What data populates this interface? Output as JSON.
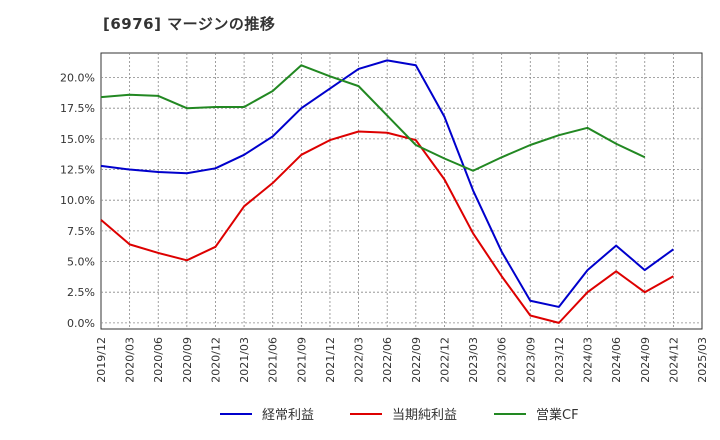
{
  "chart_data": {
    "type": "line",
    "title": "[6976]  マージンの推移",
    "x": [
      "2019/12",
      "2020/03",
      "2020/06",
      "2020/09",
      "2020/12",
      "2021/03",
      "2021/06",
      "2021/09",
      "2021/12",
      "2022/03",
      "2022/06",
      "2022/09",
      "2022/12",
      "2023/03",
      "2023/06",
      "2023/09",
      "2023/12",
      "2024/03",
      "2024/06",
      "2024/09",
      "2024/12",
      "2025/03"
    ],
    "ylim": [
      -0.5,
      22.0
    ],
    "yticks": [
      0.0,
      2.5,
      5.0,
      7.5,
      10.0,
      12.5,
      15.0,
      17.5,
      20.0
    ],
    "ytick_labels": [
      "0.0%",
      "2.5%",
      "5.0%",
      "7.5%",
      "10.0%",
      "12.5%",
      "15.0%",
      "17.5%",
      "20.0%"
    ],
    "grid": true,
    "legend_position": "bottom",
    "series": [
      {
        "name": "経常利益",
        "color": "#0000cc",
        "values": [
          12.8,
          12.5,
          12.3,
          12.2,
          12.6,
          13.7,
          15.2,
          17.5,
          19.1,
          20.7,
          21.4,
          21.0,
          16.8,
          10.8,
          5.8,
          1.8,
          1.3,
          4.3,
          6.3,
          4.3,
          6.0,
          null
        ]
      },
      {
        "name": "当期純利益",
        "color": "#dd0000",
        "values": [
          8.4,
          6.4,
          5.7,
          5.1,
          6.2,
          9.5,
          11.4,
          13.7,
          14.9,
          15.6,
          15.5,
          14.9,
          11.7,
          7.3,
          3.8,
          0.6,
          0.0,
          2.5,
          4.2,
          2.5,
          3.8,
          null
        ]
      },
      {
        "name": "営業CF",
        "color": "#228822",
        "values": [
          18.4,
          18.6,
          18.5,
          17.5,
          17.6,
          17.6,
          18.9,
          21.0,
          20.1,
          19.3,
          16.9,
          14.5,
          13.4,
          12.4,
          13.5,
          14.5,
          15.3,
          15.9,
          14.6,
          13.5,
          null,
          null
        ]
      }
    ]
  }
}
